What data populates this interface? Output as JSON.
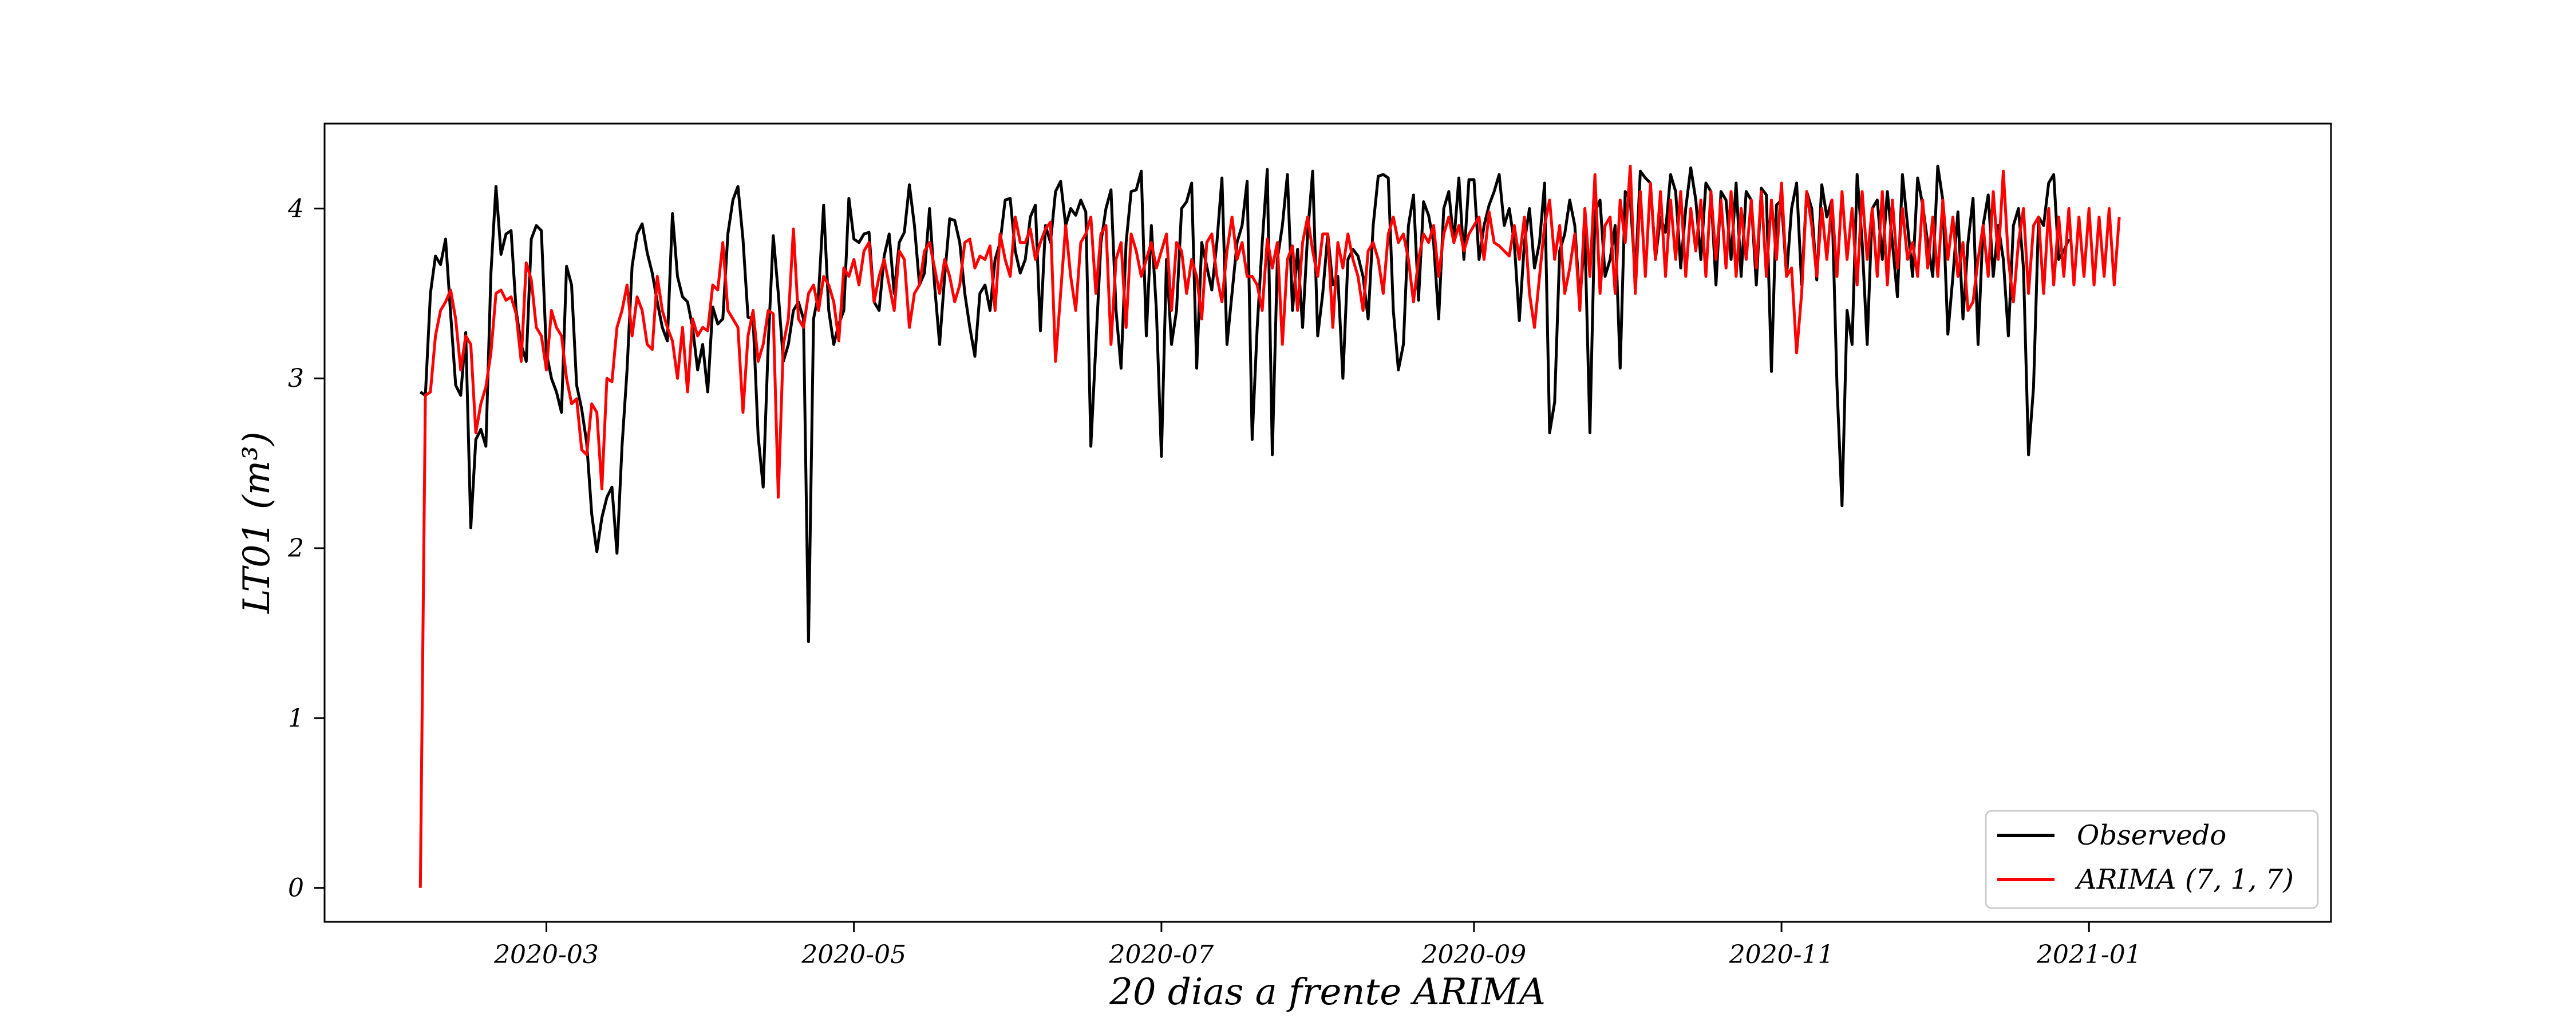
{
  "chart_data": {
    "type": "line",
    "title": "",
    "xlabel": "20 dias a frente ARIMA",
    "ylabel": "LT01 (m³)",
    "ylim": [
      -0.2,
      4.5
    ],
    "xlim": [
      "2020-01-17",
      "2021-02-18"
    ],
    "grid": false,
    "legend_position": "bottom-right",
    "x_ticks": [
      {
        "date": "2020-03-01",
        "label": "2020-03"
      },
      {
        "date": "2020-05-01",
        "label": "2020-05"
      },
      {
        "date": "2020-07-01",
        "label": "2020-07"
      },
      {
        "date": "2020-09-01",
        "label": "2020-09"
      },
      {
        "date": "2020-11-01",
        "label": "2020-11"
      },
      {
        "date": "2021-01-01",
        "label": "2021-01"
      }
    ],
    "y_ticks": [
      0,
      1,
      2,
      3,
      4
    ],
    "series": [
      {
        "name": "Observedo",
        "color": "#000000",
        "start_date": "2020-02-05",
        "values": [
          2.92,
          2.9,
          3.5,
          3.72,
          3.67,
          3.82,
          3.38,
          2.96,
          2.9,
          3.27,
          2.12,
          2.64,
          2.7,
          2.6,
          3.62,
          4.13,
          3.73,
          3.85,
          3.87,
          3.4,
          3.2,
          3.1,
          3.82,
          3.9,
          3.87,
          3.15,
          3.0,
          2.92,
          2.8,
          3.66,
          3.55,
          2.96,
          2.82,
          2.62,
          2.2,
          1.98,
          2.18,
          2.3,
          2.36,
          1.97,
          2.6,
          3.05,
          3.66,
          3.85,
          3.91,
          3.74,
          3.62,
          3.45,
          3.3,
          3.22,
          3.97,
          3.6,
          3.48,
          3.45,
          3.3,
          3.05,
          3.2,
          2.92,
          3.42,
          3.32,
          3.35,
          3.85,
          4.05,
          4.13,
          3.82,
          3.36,
          3.35,
          2.66,
          2.36,
          3.2,
          3.84,
          3.5,
          3.1,
          3.2,
          3.4,
          3.45,
          3.35,
          1.45,
          3.35,
          3.5,
          4.02,
          3.4,
          3.2,
          3.32,
          3.4,
          4.06,
          3.82,
          3.8,
          3.85,
          3.86,
          3.45,
          3.4,
          3.72,
          3.85,
          3.5,
          3.8,
          3.86,
          4.14,
          3.9,
          3.55,
          3.62,
          4.0,
          3.55,
          3.2,
          3.6,
          3.94,
          3.93,
          3.8,
          3.5,
          3.3,
          3.13,
          3.5,
          3.55,
          3.4,
          3.7,
          3.8,
          4.05,
          4.06,
          3.75,
          3.62,
          3.7,
          3.95,
          4.02,
          3.28,
          3.9,
          3.8,
          4.1,
          4.16,
          3.9,
          4.0,
          3.96,
          4.05,
          3.98,
          2.6,
          3.2,
          3.8,
          4.0,
          4.11,
          3.4,
          3.06,
          3.8,
          4.1,
          4.11,
          4.22,
          3.25,
          3.9,
          3.4,
          2.54,
          3.7,
          3.2,
          3.4,
          4.0,
          4.04,
          4.15,
          3.06,
          3.8,
          3.66,
          3.52,
          3.8,
          4.18,
          3.2,
          3.5,
          3.8,
          3.9,
          4.16,
          2.64,
          3.3,
          3.8,
          4.23,
          2.55,
          3.7,
          3.9,
          4.2,
          3.4,
          3.76,
          3.3,
          3.85,
          4.22,
          3.25,
          3.5,
          3.85,
          3.55,
          3.6,
          3.0,
          3.7,
          3.76,
          3.72,
          3.6,
          3.35,
          3.9,
          4.19,
          4.2,
          4.18,
          3.4,
          3.05,
          3.2,
          3.9,
          4.08,
          3.46,
          4.04,
          3.96,
          3.8,
          3.35,
          4.0,
          4.1,
          3.8,
          4.18,
          3.7,
          4.17,
          4.17,
          3.7,
          3.9,
          4.02,
          4.1,
          4.2,
          3.9,
          4.0,
          3.8,
          3.34,
          3.8,
          4.0,
          3.65,
          3.8,
          4.15,
          2.68,
          2.86,
          3.75,
          3.85,
          4.05,
          3.9,
          3.45,
          3.85,
          2.68,
          3.98,
          4.05,
          3.6,
          3.7,
          3.9,
          3.06,
          4.1,
          4.05,
          3.6,
          4.22,
          4.18,
          4.15,
          3.7,
          3.95,
          3.86,
          4.2,
          4.1,
          3.65,
          4.0,
          4.24,
          4.05,
          3.7,
          4.15,
          4.1,
          3.55,
          4.1,
          4.05,
          3.7,
          4.15,
          3.6,
          4.1,
          4.05,
          3.55,
          4.12,
          4.08,
          3.04,
          4.02,
          4.05,
          3.6,
          4.0,
          4.15,
          3.55,
          4.1,
          4.0,
          3.58,
          4.14,
          3.95,
          4.05,
          2.96,
          2.25,
          3.4,
          3.2,
          4.2,
          3.8,
          3.2,
          4.0,
          4.05,
          3.7,
          4.1,
          3.8,
          3.48,
          4.2,
          3.9,
          3.6,
          4.18,
          4.02,
          3.8,
          3.6,
          4.25,
          4.05,
          3.26,
          3.6,
          3.98,
          3.35,
          3.8,
          4.06,
          3.2,
          3.9,
          4.08,
          3.6,
          3.9,
          3.7,
          3.25,
          3.9,
          4.0,
          3.65,
          2.55,
          2.95,
          3.95,
          3.9,
          4.15,
          4.2,
          3.7,
          3.75,
          3.82
        ]
      },
      {
        "name": "ARIMA (7, 1, 7)",
        "color": "#ff0000",
        "start_date": "2020-02-05",
        "values": [
          0.0,
          2.9,
          2.92,
          3.25,
          3.4,
          3.45,
          3.52,
          3.35,
          3.05,
          3.25,
          3.2,
          2.68,
          2.85,
          2.95,
          3.15,
          3.5,
          3.52,
          3.46,
          3.48,
          3.38,
          3.1,
          3.68,
          3.58,
          3.3,
          3.25,
          3.05,
          3.4,
          3.3,
          3.25,
          3.0,
          2.85,
          2.88,
          2.58,
          2.55,
          2.85,
          2.8,
          2.35,
          3.0,
          2.98,
          3.3,
          3.4,
          3.55,
          3.25,
          3.48,
          3.4,
          3.2,
          3.17,
          3.6,
          3.4,
          3.3,
          3.22,
          3.0,
          3.3,
          2.92,
          3.35,
          3.25,
          3.3,
          3.28,
          3.55,
          3.52,
          3.8,
          3.4,
          3.35,
          3.3,
          2.8,
          3.25,
          3.4,
          3.1,
          3.2,
          3.4,
          3.38,
          2.3,
          3.2,
          3.35,
          3.88,
          3.35,
          3.3,
          3.5,
          3.55,
          3.4,
          3.6,
          3.55,
          3.45,
          3.22,
          3.65,
          3.6,
          3.7,
          3.55,
          3.75,
          3.8,
          3.45,
          3.6,
          3.7,
          3.55,
          3.4,
          3.75,
          3.7,
          3.3,
          3.5,
          3.55,
          3.75,
          3.8,
          3.65,
          3.5,
          3.7,
          3.6,
          3.45,
          3.55,
          3.8,
          3.82,
          3.65,
          3.72,
          3.7,
          3.78,
          3.4,
          3.85,
          3.7,
          3.6,
          3.95,
          3.8,
          3.8,
          3.88,
          3.7,
          3.8,
          3.88,
          3.92,
          3.1,
          3.5,
          3.9,
          3.6,
          3.4,
          3.8,
          3.85,
          3.95,
          3.5,
          3.85,
          3.9,
          3.2,
          3.7,
          3.8,
          3.3,
          3.85,
          3.75,
          3.6,
          3.7,
          3.8,
          3.65,
          3.75,
          3.85,
          3.4,
          3.8,
          3.75,
          3.5,
          3.7,
          3.6,
          3.35,
          3.8,
          3.85,
          3.6,
          3.45,
          3.75,
          3.95,
          3.7,
          3.8,
          3.6,
          3.6,
          3.55,
          3.4,
          3.82,
          3.65,
          3.8,
          3.2,
          3.7,
          3.78,
          3.4,
          3.8,
          3.95,
          3.75,
          3.6,
          3.85,
          3.85,
          3.3,
          3.8,
          3.65,
          3.85,
          3.7,
          3.6,
          3.4,
          3.75,
          3.8,
          3.7,
          3.5,
          3.85,
          3.95,
          3.8,
          3.85,
          3.7,
          3.45,
          3.7,
          3.85,
          3.8,
          3.9,
          3.6,
          3.85,
          3.95,
          3.8,
          3.9,
          3.75,
          3.85,
          3.9,
          3.95,
          3.7,
          3.98,
          3.8,
          3.78,
          3.75,
          3.72,
          3.9,
          3.7,
          3.95,
          3.5,
          3.3,
          3.6,
          3.9,
          4.05,
          3.7,
          3.9,
          3.5,
          3.65,
          3.85,
          3.4,
          4.0,
          3.6,
          4.2,
          3.5,
          3.9,
          3.95,
          3.5,
          4.05,
          3.8,
          4.25,
          3.5,
          4.1,
          3.6,
          4.15,
          3.7,
          4.1,
          3.6,
          4.05,
          3.7,
          4.1,
          3.6,
          4.0,
          3.75,
          4.05,
          3.6,
          4.1,
          3.7,
          4.05,
          3.65,
          4.1,
          3.6,
          4.0,
          3.7,
          4.05,
          3.65,
          4.1,
          3.6,
          4.05,
          3.7,
          4.15,
          3.6,
          3.65,
          3.15,
          3.5,
          4.1,
          3.9,
          3.6,
          4.0,
          3.7,
          4.05,
          3.6,
          4.1,
          3.7,
          4.0,
          3.55,
          4.1,
          3.7,
          4.0,
          3.6,
          4.1,
          3.55,
          4.05,
          3.65,
          4.0,
          3.7,
          3.8,
          3.6,
          4.05,
          3.65,
          3.95,
          3.6,
          4.05,
          3.7,
          3.95,
          3.6,
          3.8,
          3.4,
          3.45,
          3.7,
          3.9,
          3.6,
          4.1,
          3.7,
          4.22,
          3.7,
          3.45,
          3.8,
          4.0,
          3.5,
          3.9,
          3.95,
          3.5,
          4.0,
          3.55,
          3.95,
          3.6,
          4.0,
          3.55,
          3.95,
          3.6,
          4.0,
          3.55,
          3.95,
          3.6,
          4.0,
          3.55,
          3.95
        ]
      }
    ]
  }
}
